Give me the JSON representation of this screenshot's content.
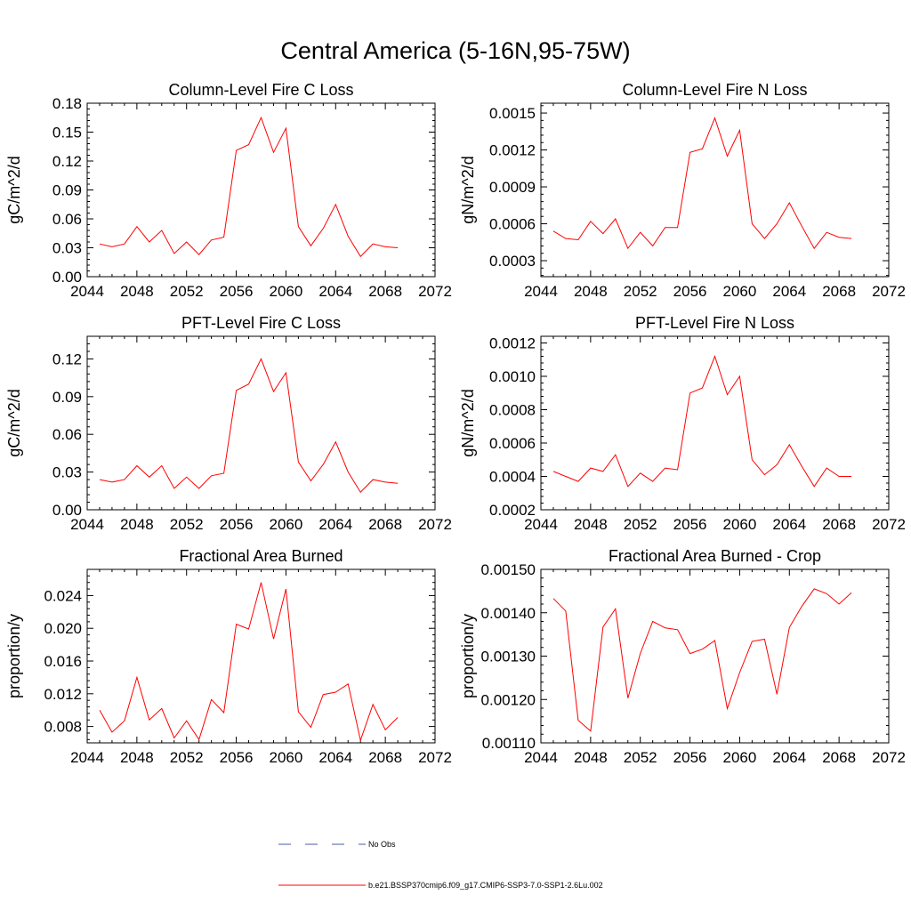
{
  "figure": {
    "title": "Central America (5-16N,95-75W)"
  },
  "chart_data": [
    {
      "type": "line",
      "title": "Column-Level Fire C Loss",
      "xlabel": "",
      "ylabel": "gC/m^2/d",
      "xlim": [
        2044,
        2072
      ],
      "ylim": [
        0,
        0.18
      ],
      "x_ticks": [
        2044,
        2048,
        2052,
        2056,
        2060,
        2064,
        2068,
        2072
      ],
      "x_tick_labels": [
        "2044",
        "2048",
        "2052",
        "2056",
        "2060",
        "2064",
        "2068",
        "2072"
      ],
      "y_ticks": [
        0,
        0.03,
        0.06,
        0.09,
        0.12,
        0.15,
        0.18
      ],
      "y_tick_labels": [
        "0.00",
        "0.03",
        "0.06",
        "0.09",
        "0.12",
        "0.15",
        "0.18"
      ],
      "series": [
        {
          "color": "#ff0000",
          "x": [
            2045,
            2046,
            2047,
            2048,
            2049,
            2050,
            2051,
            2052,
            2053,
            2054,
            2055,
            2056,
            2057,
            2058,
            2059,
            2060,
            2061,
            2062,
            2063,
            2064,
            2065,
            2066,
            2067,
            2068,
            2069
          ],
          "y": [
            0.034,
            0.031,
            0.034,
            0.052,
            0.036,
            0.048,
            0.024,
            0.036,
            0.023,
            0.038,
            0.041,
            0.131,
            0.137,
            0.165,
            0.129,
            0.154,
            0.052,
            0.032,
            0.05,
            0.075,
            0.042,
            0.021,
            0.034,
            0.031,
            0.03
          ]
        }
      ]
    },
    {
      "type": "line",
      "title": "Column-Level Fire N Loss",
      "xlabel": "",
      "ylabel": "gN/m^2/d",
      "xlim": [
        2044,
        2072
      ],
      "ylim": [
        0.00017,
        0.00158
      ],
      "x_ticks": [
        2044,
        2048,
        2052,
        2056,
        2060,
        2064,
        2068,
        2072
      ],
      "x_tick_labels": [
        "2044",
        "2048",
        "2052",
        "2056",
        "2060",
        "2064",
        "2068",
        "2072"
      ],
      "y_ticks": [
        0.0003,
        0.0006,
        0.0009,
        0.0012,
        0.0015
      ],
      "y_tick_labels": [
        "0.0003",
        "0.0006",
        "0.0009",
        "0.0012",
        "0.0015"
      ],
      "series": [
        {
          "color": "#ff0000",
          "x": [
            2045,
            2046,
            2047,
            2048,
            2049,
            2050,
            2051,
            2052,
            2053,
            2054,
            2055,
            2056,
            2057,
            2058,
            2059,
            2060,
            2061,
            2062,
            2063,
            2064,
            2065,
            2066,
            2067,
            2068,
            2069
          ],
          "y": [
            0.00054,
            0.00048,
            0.00047,
            0.00062,
            0.00052,
            0.00064,
            0.0004,
            0.00053,
            0.00042,
            0.00057,
            0.00057,
            0.00118,
            0.00121,
            0.00146,
            0.00115,
            0.00136,
            0.0006,
            0.00048,
            0.0006,
            0.00077,
            0.00058,
            0.0004,
            0.00053,
            0.00049,
            0.00048
          ]
        }
      ]
    },
    {
      "type": "line",
      "title": "PFT-Level Fire C Loss",
      "xlabel": "",
      "ylabel": "gC/m^2/d",
      "xlim": [
        2044,
        2072
      ],
      "ylim": [
        0,
        0.138
      ],
      "x_ticks": [
        2044,
        2048,
        2052,
        2056,
        2060,
        2064,
        2068,
        2072
      ],
      "x_tick_labels": [
        "2044",
        "2048",
        "2052",
        "2056",
        "2060",
        "2064",
        "2068",
        "2072"
      ],
      "y_ticks": [
        0,
        0.03,
        0.06,
        0.09,
        0.12
      ],
      "y_tick_labels": [
        "0.00",
        "0.03",
        "0.06",
        "0.09",
        "0.12"
      ],
      "series": [
        {
          "color": "#ff0000",
          "x": [
            2045,
            2046,
            2047,
            2048,
            2049,
            2050,
            2051,
            2052,
            2053,
            2054,
            2055,
            2056,
            2057,
            2058,
            2059,
            2060,
            2061,
            2062,
            2063,
            2064,
            2065,
            2066,
            2067,
            2068,
            2069
          ],
          "y": [
            0.024,
            0.022,
            0.024,
            0.035,
            0.026,
            0.035,
            0.017,
            0.026,
            0.017,
            0.027,
            0.029,
            0.095,
            0.1,
            0.12,
            0.094,
            0.109,
            0.038,
            0.023,
            0.036,
            0.054,
            0.03,
            0.014,
            0.024,
            0.022,
            0.021
          ]
        }
      ]
    },
    {
      "type": "line",
      "title": "PFT-Level Fire N Loss",
      "xlabel": "",
      "ylabel": "gN/m^2/d",
      "xlim": [
        2044,
        2072
      ],
      "ylim": [
        0.0002,
        0.00124
      ],
      "x_ticks": [
        2044,
        2048,
        2052,
        2056,
        2060,
        2064,
        2068,
        2072
      ],
      "x_tick_labels": [
        "2044",
        "2048",
        "2052",
        "2056",
        "2060",
        "2064",
        "2068",
        "2072"
      ],
      "y_ticks": [
        0.0002,
        0.0004,
        0.0006,
        0.0008,
        0.001,
        0.0012
      ],
      "y_tick_labels": [
        "0.0002",
        "0.0004",
        "0.0006",
        "0.0008",
        "0.0010",
        "0.0012"
      ],
      "series": [
        {
          "color": "#ff0000",
          "x": [
            2045,
            2046,
            2047,
            2048,
            2049,
            2050,
            2051,
            2052,
            2053,
            2054,
            2055,
            2056,
            2057,
            2058,
            2059,
            2060,
            2061,
            2062,
            2063,
            2064,
            2065,
            2066,
            2067,
            2068,
            2069
          ],
          "y": [
            0.00043,
            0.0004,
            0.00037,
            0.00045,
            0.00043,
            0.00053,
            0.00034,
            0.00042,
            0.00037,
            0.00045,
            0.00044,
            0.0009,
            0.00093,
            0.00112,
            0.00089,
            0.001,
            0.0005,
            0.00041,
            0.00047,
            0.00059,
            0.00046,
            0.00034,
            0.00045,
            0.0004,
            0.0004
          ]
        }
      ]
    },
    {
      "type": "line",
      "title": "Fractional Area Burned",
      "xlabel": "",
      "ylabel": "proportion/y",
      "xlim": [
        2044,
        2072
      ],
      "ylim": [
        0.006,
        0.0272
      ],
      "x_ticks": [
        2044,
        2048,
        2052,
        2056,
        2060,
        2064,
        2068,
        2072
      ],
      "x_tick_labels": [
        "2044",
        "2048",
        "2052",
        "2056",
        "2060",
        "2064",
        "2068",
        "2072"
      ],
      "y_ticks": [
        0.008,
        0.012,
        0.016,
        0.02,
        0.024
      ],
      "y_tick_labels": [
        "0.008",
        "0.012",
        "0.016",
        "0.020",
        "0.024"
      ],
      "series": [
        {
          "color": "#ff0000",
          "x": [
            2045,
            2046,
            2047,
            2048,
            2049,
            2050,
            2051,
            2052,
            2053,
            2054,
            2055,
            2056,
            2057,
            2058,
            2059,
            2060,
            2061,
            2062,
            2063,
            2064,
            2065,
            2066,
            2067,
            2068,
            2069
          ],
          "y": [
            0.01,
            0.0073,
            0.0087,
            0.014,
            0.0088,
            0.0102,
            0.0066,
            0.0087,
            0.0064,
            0.0113,
            0.0097,
            0.0205,
            0.0199,
            0.0256,
            0.0187,
            0.0248,
            0.0098,
            0.0079,
            0.0119,
            0.0122,
            0.0132,
            0.0063,
            0.0107,
            0.0076,
            0.0091
          ]
        }
      ]
    },
    {
      "type": "line",
      "title": "Fractional Area Burned - Crop",
      "xlabel": "",
      "ylabel": "proportion/y",
      "xlim": [
        2044,
        2072
      ],
      "ylim": [
        0.0011,
        0.0015
      ],
      "x_ticks": [
        2044,
        2048,
        2052,
        2056,
        2060,
        2064,
        2068,
        2072
      ],
      "x_tick_labels": [
        "2044",
        "2048",
        "2052",
        "2056",
        "2060",
        "2064",
        "2068",
        "2072"
      ],
      "y_ticks": [
        0.0011,
        0.0012,
        0.0013,
        0.0014,
        0.0015
      ],
      "y_tick_labels": [
        "0.00110",
        "0.00120",
        "0.00130",
        "0.00140",
        "0.00150"
      ],
      "series": [
        {
          "color": "#ff0000",
          "x": [
            2045,
            2046,
            2047,
            2048,
            2049,
            2050,
            2051,
            2052,
            2053,
            2054,
            2055,
            2056,
            2057,
            2058,
            2059,
            2060,
            2061,
            2062,
            2063,
            2064,
            2065,
            2066,
            2067,
            2068,
            2069
          ],
          "y": [
            0.001433,
            0.001404,
            0.001152,
            0.001127,
            0.001367,
            0.001409,
            0.001203,
            0.001306,
            0.00138,
            0.001365,
            0.001361,
            0.001306,
            0.001316,
            0.001336,
            0.001179,
            0.001262,
            0.001334,
            0.001339,
            0.001212,
            0.001366,
            0.001415,
            0.001455,
            0.001444,
            0.00142,
            0.001446
          ]
        }
      ]
    }
  ],
  "legend": {
    "items": [
      {
        "label": "No Obs",
        "color": "#4a5aa8",
        "style": "dashed"
      },
      {
        "label": "b.e21.BSSP370cmip6.f09_g17.CMIP6-SSP3-7.0-SSP1-2.6Lu.002",
        "color": "#ff0000",
        "style": "solid"
      }
    ]
  }
}
